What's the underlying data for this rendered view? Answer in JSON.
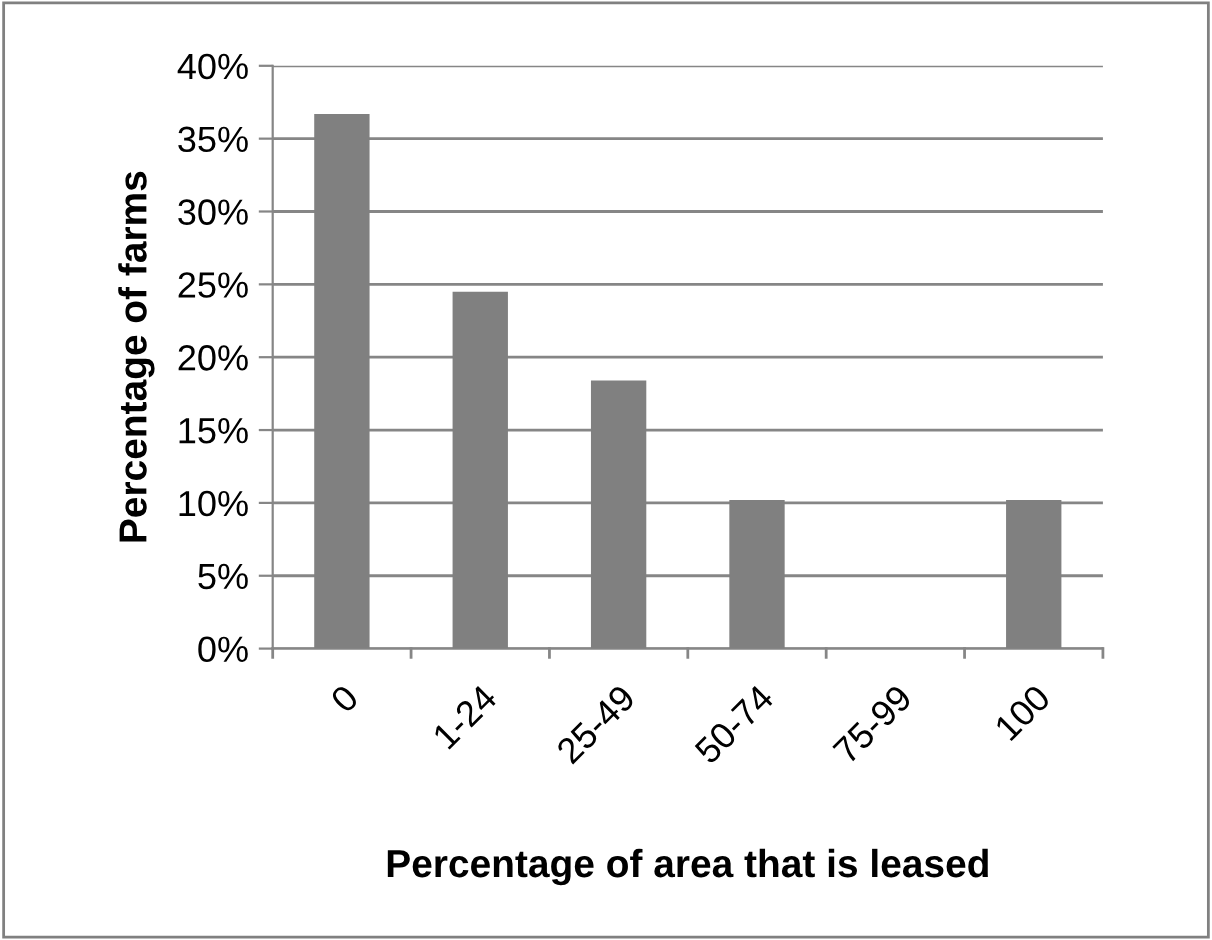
{
  "chart_data": {
    "type": "bar",
    "xlabel": "Percentage of area that is leased",
    "ylabel": "Percentage of farms",
    "categories": [
      "0",
      "1-24",
      "25-49",
      "50-74",
      "75-99",
      "100"
    ],
    "values": [
      36.7,
      24.5,
      18.4,
      10.2,
      0,
      10.2
    ],
    "color": "#808080",
    "ylim": [
      0,
      40
    ],
    "yticks": [
      {
        "value": 0,
        "label": "0%"
      },
      {
        "value": 5,
        "label": "5%"
      },
      {
        "value": 10,
        "label": "10%"
      },
      {
        "value": 15,
        "label": "15%"
      },
      {
        "value": 20,
        "label": "20%"
      },
      {
        "value": 25,
        "label": "25%"
      },
      {
        "value": 30,
        "label": "30%"
      },
      {
        "value": 35,
        "label": "35%"
      },
      {
        "value": 40,
        "label": "40%"
      }
    ],
    "grid": "y",
    "legend": false
  }
}
